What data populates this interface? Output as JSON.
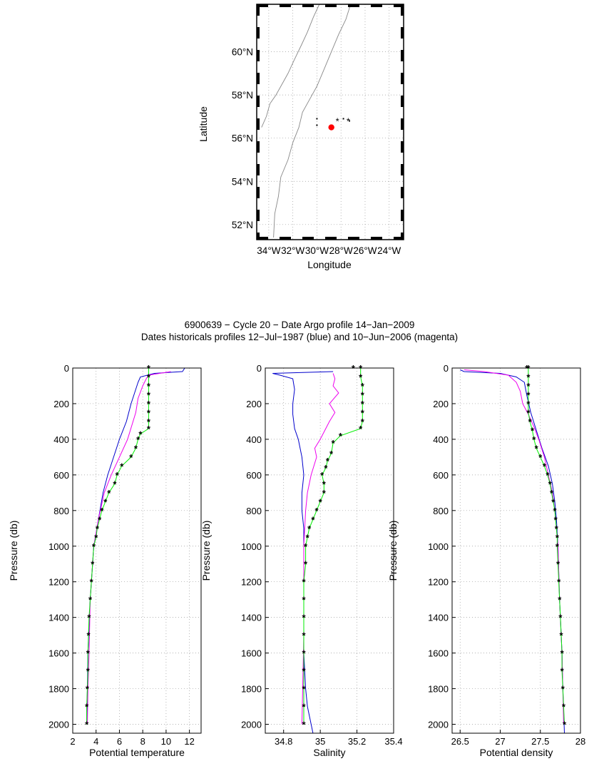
{
  "title_lines": [
    "6900639 − Cycle 20 − Date Argo profile 14−Jan−2009",
    "Dates historicals profiles 12−Jul−1987 (blue) and 10−Jun−2006 (magenta)"
  ],
  "colors": {
    "argo": "#00ee00",
    "hist1987": "#0000cc",
    "hist2006": "#ee00ee",
    "surface_marker": "#ff0000",
    "coast": "#888888"
  },
  "map": {
    "xlabel": "Longitude",
    "ylabel": "Latitude",
    "lon_range": [
      -35,
      -22.8
    ],
    "lat_range": [
      51.3,
      62.2
    ],
    "lon_ticks": [
      -34,
      -32,
      -30,
      -28,
      -26,
      -24
    ],
    "lon_tick_labels": [
      "34°W",
      "32°W",
      "30°W",
      "28°W",
      "26°W",
      "24°W"
    ],
    "lat_ticks": [
      52,
      54,
      56,
      58,
      60
    ],
    "lat_tick_labels": [
      "52°N",
      "54°N",
      "56°N",
      "58°N",
      "60°N"
    ],
    "argo_position": {
      "lon": -28.8,
      "lat": 56.5
    },
    "hist_1987_position": {
      "lon": -28.3,
      "lat": 56.8
    },
    "hist_2006_position": {
      "lon": -27.4,
      "lat": 56.8
    },
    "extra_stations": [
      [
        -30,
        56.9
      ],
      [
        -30,
        56.6
      ],
      [
        -27.8,
        56.9
      ],
      [
        -27.3,
        56.8
      ]
    ],
    "coast_lines": [
      [
        [
          -33.6,
          51.4
        ],
        [
          -33.5,
          52.5
        ],
        [
          -33.2,
          53.3
        ],
        [
          -33.0,
          54.2
        ],
        [
          -32.4,
          55.0
        ],
        [
          -32.0,
          55.8
        ],
        [
          -31.5,
          56.5
        ],
        [
          -31.2,
          57.2
        ],
        [
          -30.6,
          57.8
        ],
        [
          -30.0,
          58.4
        ],
        [
          -29.4,
          59.2
        ],
        [
          -28.8,
          60.0
        ],
        [
          -28.2,
          60.8
        ],
        [
          -27.6,
          61.5
        ],
        [
          -27.2,
          62.2
        ]
      ],
      [
        [
          -34.6,
          56.5
        ],
        [
          -34.2,
          57.0
        ],
        [
          -33.9,
          57.6
        ],
        [
          -33.4,
          58.0
        ],
        [
          -32.9,
          58.5
        ],
        [
          -32.4,
          59.0
        ],
        [
          -31.9,
          59.6
        ],
        [
          -31.3,
          60.3
        ],
        [
          -30.8,
          60.9
        ],
        [
          -30.3,
          61.6
        ],
        [
          -29.8,
          62.2
        ]
      ]
    ]
  },
  "chart_data": [
    {
      "type": "line",
      "xlabel": "Potential temperature",
      "ylabel": "Pressure (db)",
      "xlim": [
        2,
        13
      ],
      "ylim": [
        2050,
        0
      ],
      "xticks": [
        2,
        4,
        6,
        8,
        10,
        12
      ],
      "yticks": [
        0,
        200,
        400,
        600,
        800,
        1000,
        1200,
        1400,
        1600,
        1800,
        2000
      ],
      "series": [
        {
          "key": "hist1987",
          "points": [
            [
              11.6,
              0
            ],
            [
              11.4,
              20
            ],
            [
              9.0,
              30
            ],
            [
              7.8,
              50
            ],
            [
              7.6,
              80
            ],
            [
              7.3,
              140
            ],
            [
              7.0,
              200
            ],
            [
              6.6,
              300
            ],
            [
              6.0,
              400
            ],
            [
              5.5,
              500
            ],
            [
              5.0,
              600
            ],
            [
              4.6,
              700
            ],
            [
              4.2,
              850
            ],
            [
              3.8,
              1000
            ],
            [
              3.5,
              1300
            ],
            [
              3.3,
              1600
            ],
            [
              3.25,
              1800
            ],
            [
              3.2,
              2000
            ]
          ]
        },
        {
          "key": "hist2006",
          "points": [
            [
              10.4,
              20
            ],
            [
              8.5,
              40
            ],
            [
              8.3,
              60
            ],
            [
              8.0,
              100
            ],
            [
              7.6,
              170
            ],
            [
              7.4,
              250
            ],
            [
              6.7,
              400
            ],
            [
              6.0,
              500
            ],
            [
              5.3,
              600
            ],
            [
              4.7,
              700
            ],
            [
              4.2,
              850
            ],
            [
              3.8,
              1000
            ],
            [
              3.5,
              1300
            ],
            [
              3.4,
              1600
            ],
            [
              3.3,
              1800
            ],
            [
              3.25,
              2000
            ]
          ]
        },
        {
          "key": "argo",
          "points": [
            [
              8.5,
              0
            ],
            [
              8.5,
              50
            ],
            [
              8.5,
              100
            ],
            [
              8.5,
              150
            ],
            [
              8.5,
              200
            ],
            [
              8.5,
              250
            ],
            [
              8.5,
              300
            ],
            [
              8.5,
              340
            ],
            [
              7.8,
              370
            ],
            [
              7.6,
              400
            ],
            [
              7.4,
              450
            ],
            [
              7.0,
              500
            ],
            [
              6.2,
              550
            ],
            [
              5.8,
              600
            ],
            [
              5.6,
              650
            ],
            [
              5.1,
              700
            ],
            [
              4.8,
              750
            ],
            [
              4.5,
              800
            ],
            [
              4.3,
              850
            ],
            [
              4.1,
              900
            ],
            [
              4.0,
              950
            ],
            [
              3.8,
              1000
            ],
            [
              3.7,
              1100
            ],
            [
              3.6,
              1200
            ],
            [
              3.5,
              1300
            ],
            [
              3.4,
              1400
            ],
            [
              3.35,
              1500
            ],
            [
              3.3,
              1600
            ],
            [
              3.3,
              1700
            ],
            [
              3.25,
              1800
            ],
            [
              3.2,
              1900
            ],
            [
              3.2,
              2000
            ]
          ]
        }
      ]
    },
    {
      "type": "line",
      "xlabel": "Salinity",
      "ylabel": "Pressure (db)",
      "xlim": [
        34.7,
        35.4
      ],
      "ylim": [
        2050,
        0
      ],
      "xticks": [
        34.8,
        35,
        35.2,
        35.4
      ],
      "yticks": [
        0,
        200,
        400,
        600,
        800,
        1000,
        1200,
        1400,
        1600,
        1800,
        2000
      ],
      "series": [
        {
          "key": "hist1987",
          "points": [
            [
              35.07,
              20
            ],
            [
              34.74,
              30
            ],
            [
              34.78,
              40
            ],
            [
              34.85,
              60
            ],
            [
              34.86,
              120
            ],
            [
              34.85,
              200
            ],
            [
              34.85,
              260
            ],
            [
              34.86,
              340
            ],
            [
              34.88,
              400
            ],
            [
              34.9,
              500
            ],
            [
              34.91,
              600
            ],
            [
              34.9,
              700
            ],
            [
              34.9,
              800
            ],
            [
              34.91,
              900
            ],
            [
              34.91,
              1000
            ],
            [
              34.91,
              1200
            ],
            [
              34.91,
              1400
            ],
            [
              34.91,
              1600
            ],
            [
              34.92,
              1800
            ],
            [
              34.93,
              1900
            ],
            [
              34.96,
              2050
            ]
          ]
        },
        {
          "key": "hist2006",
          "points": [
            [
              35.07,
              30
            ],
            [
              35.08,
              60
            ],
            [
              35.07,
              100
            ],
            [
              35.1,
              140
            ],
            [
              35.05,
              200
            ],
            [
              35.08,
              250
            ],
            [
              35.05,
              300
            ],
            [
              35.0,
              400
            ],
            [
              34.97,
              450
            ],
            [
              34.98,
              500
            ],
            [
              34.95,
              600
            ],
            [
              34.93,
              700
            ],
            [
              34.92,
              800
            ],
            [
              34.91,
              1000
            ],
            [
              34.91,
              1500
            ],
            [
              34.9,
              2000
            ]
          ]
        },
        {
          "key": "argo",
          "points": [
            [
              35.22,
              0
            ],
            [
              35.22,
              50
            ],
            [
              35.23,
              100
            ],
            [
              35.23,
              150
            ],
            [
              35.23,
              200
            ],
            [
              35.23,
              250
            ],
            [
              35.23,
              300
            ],
            [
              35.22,
              340
            ],
            [
              35.11,
              380
            ],
            [
              35.07,
              420
            ],
            [
              35.06,
              480
            ],
            [
              35.04,
              520
            ],
            [
              35.03,
              560
            ],
            [
              35.01,
              600
            ],
            [
              35.02,
              650
            ],
            [
              35.02,
              700
            ],
            [
              35.0,
              750
            ],
            [
              34.98,
              800
            ],
            [
              34.96,
              850
            ],
            [
              34.94,
              900
            ],
            [
              34.93,
              950
            ],
            [
              34.92,
              1000
            ],
            [
              34.92,
              1100
            ],
            [
              34.91,
              1200
            ],
            [
              34.91,
              1300
            ],
            [
              34.91,
              1400
            ],
            [
              34.91,
              1500
            ],
            [
              34.91,
              1600
            ],
            [
              34.91,
              1700
            ],
            [
              34.91,
              1800
            ],
            [
              34.91,
              1900
            ],
            [
              34.91,
              2000
            ]
          ]
        }
      ],
      "surface_marker": {
        "x": 35.18,
        "y": 0
      }
    },
    {
      "type": "line",
      "xlabel": "Potential density",
      "ylabel": "Pressure (db)",
      "xlim": [
        26.4,
        28
      ],
      "ylim": [
        2050,
        0
      ],
      "xticks": [
        26.5,
        27,
        27.5,
        28
      ],
      "yticks": [
        0,
        200,
        400,
        600,
        800,
        1000,
        1200,
        1400,
        1600,
        1800,
        2000
      ],
      "series": [
        {
          "key": "hist1987",
          "points": [
            [
              26.5,
              10
            ],
            [
              26.55,
              20
            ],
            [
              27.0,
              30
            ],
            [
              27.2,
              50
            ],
            [
              27.3,
              80
            ],
            [
              27.33,
              150
            ],
            [
              27.38,
              250
            ],
            [
              27.45,
              350
            ],
            [
              27.52,
              450
            ],
            [
              27.6,
              550
            ],
            [
              27.65,
              650
            ],
            [
              27.68,
              750
            ],
            [
              27.7,
              850
            ],
            [
              27.72,
              1000
            ],
            [
              27.74,
              1300
            ],
            [
              27.77,
              1600
            ],
            [
              27.78,
              1800
            ],
            [
              27.8,
              2050
            ]
          ]
        },
        {
          "key": "hist2006",
          "points": [
            [
              26.55,
              10
            ],
            [
              26.8,
              20
            ],
            [
              27.1,
              40
            ],
            [
              27.2,
              80
            ],
            [
              27.25,
              130
            ],
            [
              27.28,
              200
            ],
            [
              27.35,
              260
            ],
            [
              27.42,
              330
            ],
            [
              27.48,
              400
            ],
            [
              27.55,
              500
            ],
            [
              27.6,
              600
            ],
            [
              27.65,
              700
            ],
            [
              27.68,
              800
            ],
            [
              27.7,
              900
            ],
            [
              27.72,
              1000
            ],
            [
              27.74,
              1300
            ],
            [
              27.77,
              1600
            ],
            [
              27.79,
              2000
            ]
          ]
        },
        {
          "key": "argo",
          "points": [
            [
              27.35,
              0
            ],
            [
              27.35,
              50
            ],
            [
              27.35,
              100
            ],
            [
              27.35,
              150
            ],
            [
              27.35,
              200
            ],
            [
              27.35,
              250
            ],
            [
              27.37,
              300
            ],
            [
              27.4,
              350
            ],
            [
              27.42,
              400
            ],
            [
              27.45,
              450
            ],
            [
              27.5,
              500
            ],
            [
              27.55,
              550
            ],
            [
              27.59,
              600
            ],
            [
              27.62,
              650
            ],
            [
              27.64,
              700
            ],
            [
              27.66,
              750
            ],
            [
              27.68,
              800
            ],
            [
              27.69,
              850
            ],
            [
              27.7,
              900
            ],
            [
              27.71,
              950
            ],
            [
              27.71,
              1000
            ],
            [
              27.72,
              1100
            ],
            [
              27.73,
              1200
            ],
            [
              27.74,
              1300
            ],
            [
              27.75,
              1400
            ],
            [
              27.76,
              1500
            ],
            [
              27.77,
              1600
            ],
            [
              27.77,
              1700
            ],
            [
              27.78,
              1800
            ],
            [
              27.79,
              1900
            ],
            [
              27.8,
              2000
            ]
          ]
        }
      ],
      "surface_marker": {
        "x": 27.33,
        "y": 0
      }
    }
  ]
}
